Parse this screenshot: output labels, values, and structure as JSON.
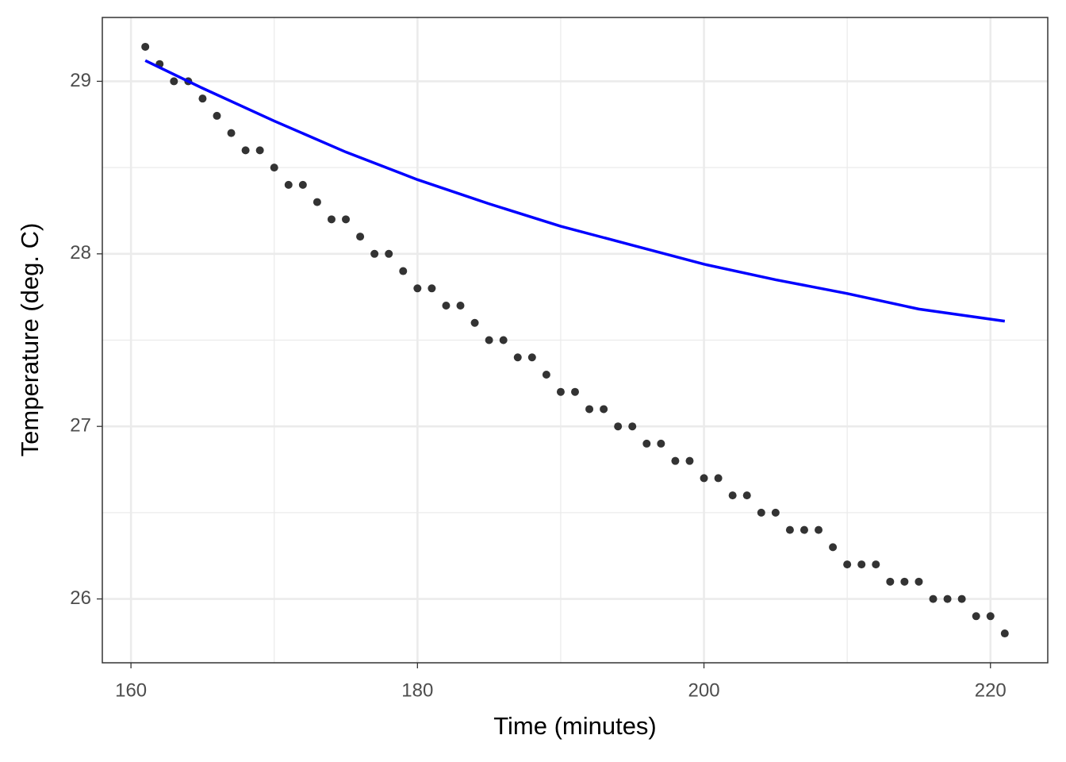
{
  "chart_data": {
    "type": "scatter",
    "x_label": "Time (minutes)",
    "y_label": "Temperature (deg. C)",
    "xlim": [
      158,
      224
    ],
    "ylim": [
      25.63,
      29.37
    ],
    "xticks": [
      160,
      180,
      200,
      220
    ],
    "yticks": [
      26,
      27,
      28,
      29
    ],
    "x_minor_grid": [
      170,
      190,
      210
    ],
    "y_minor_grid": [
      26.5,
      27.5,
      28.5
    ],
    "grid": true,
    "series": [
      {
        "mode": "points",
        "color": "#333333",
        "x": [
          161,
          162,
          163,
          164,
          165,
          166,
          167,
          168,
          169,
          170,
          171,
          172,
          173,
          174,
          175,
          176,
          177,
          178,
          179,
          180,
          181,
          182,
          183,
          184,
          185,
          186,
          187,
          188,
          189,
          190,
          191,
          192,
          193,
          194,
          195,
          196,
          197,
          198,
          199,
          200,
          201,
          202,
          203,
          204,
          205,
          206,
          207,
          208,
          209,
          210,
          211,
          212,
          213,
          214,
          215,
          216,
          217,
          218,
          219,
          220,
          221
        ],
        "values": [
          29.2,
          29.1,
          29.0,
          29.0,
          28.9,
          28.8,
          28.7,
          28.6,
          28.6,
          28.5,
          28.4,
          28.4,
          28.3,
          28.2,
          28.2,
          28.1,
          28.0,
          28.0,
          27.9,
          27.8,
          27.8,
          27.7,
          27.7,
          27.6,
          27.5,
          27.5,
          27.4,
          27.4,
          27.3,
          27.2,
          27.2,
          27.1,
          27.1,
          27.0,
          27.0,
          26.9,
          26.9,
          26.8,
          26.8,
          26.7,
          26.7,
          26.6,
          26.6,
          26.5,
          26.5,
          26.4,
          26.4,
          26.4,
          26.3,
          26.2,
          26.2,
          26.2,
          26.1,
          26.1,
          26.1,
          26.0,
          26.0,
          26.0,
          25.9,
          25.9,
          25.8
        ]
      },
      {
        "mode": "line",
        "color": "#0000ff",
        "x": [
          161,
          165,
          170,
          175,
          180,
          185,
          190,
          195,
          200,
          205,
          210,
          215,
          221
        ],
        "values": [
          29.12,
          28.96,
          28.77,
          28.59,
          28.43,
          28.29,
          28.16,
          28.05,
          27.94,
          27.85,
          27.77,
          27.68,
          27.61
        ]
      }
    ]
  }
}
